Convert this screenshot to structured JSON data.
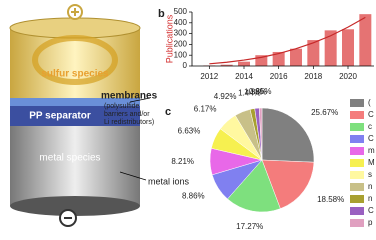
{
  "diagram": {
    "sulfur": "sulfur species",
    "membranes": "membranes",
    "membranes_note": [
      "(polysulfide",
      "barriers and/or",
      "Li redistributors)"
    ],
    "separator": "PP separator",
    "metal": "metal species",
    "ions": "metal ions"
  },
  "chart_data": [
    {
      "type": "bar",
      "panel": "b",
      "ylabel": "Publications",
      "x": [
        2012,
        2013,
        2014,
        2015,
        2016,
        2017,
        2018,
        2019,
        2020,
        2021
      ],
      "values": [
        5,
        12,
        40,
        100,
        130,
        160,
        240,
        330,
        340,
        480
      ],
      "trend_values": [
        20,
        35,
        55,
        80,
        115,
        160,
        215,
        280,
        360,
        450
      ],
      "color": "#e57373",
      "trend_color": "#c62828",
      "xlim": [
        2011,
        2021.5
      ],
      "xticks": [
        2012,
        2014,
        2016,
        2018,
        2020
      ],
      "ylim": [
        0,
        500
      ],
      "yticks": [
        0,
        100,
        200,
        300,
        400,
        500
      ]
    },
    {
      "type": "pie",
      "panel": "c",
      "categories": [
        "(",
        "C",
        "c",
        "C",
        "m",
        "M",
        "s",
        "n",
        "n",
        "C",
        "p"
      ],
      "values": [
        25.67,
        18.58,
        17.27,
        8.86,
        8.21,
        6.63,
        6.17,
        4.92,
        1.44,
        1.38,
        0.85
      ],
      "value_labels": [
        "25.67%",
        "18.58%",
        "17.27%",
        "8.86%",
        "8.21%",
        "6.63%",
        "6.17%",
        "4.92%",
        "1.44%",
        "1.38%",
        "0.85%"
      ],
      "colors": [
        "#808080",
        "#f47c7c",
        "#7ee07e",
        "#8080f0",
        "#e868e8",
        "#f6f050",
        "#fff8a0",
        "#c8c088",
        "#a8a030",
        "#9a60c0",
        "#e0a0c0"
      ]
    }
  ]
}
